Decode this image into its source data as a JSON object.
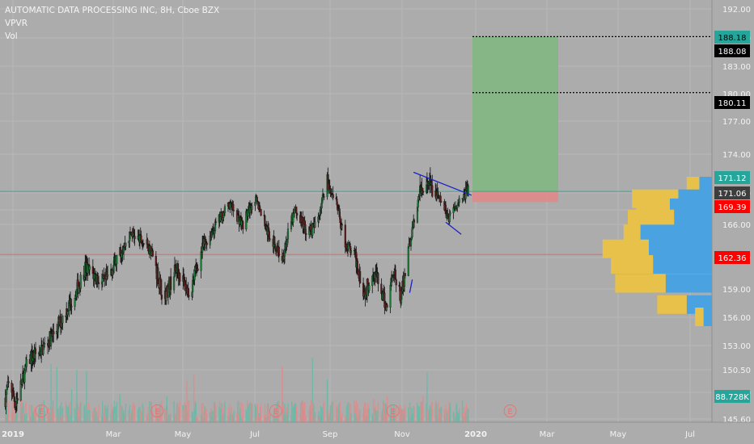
{
  "chart_data": {
    "type": "candlestick",
    "title": "AUTOMATIC DATA PROCESSING INC, 8H, Cboe BZX",
    "indicators": [
      "VPVR",
      "Vol"
    ],
    "price_axis": {
      "ticks": [
        "192.00",
        "188.00",
        "183.00",
        "180.00",
        "177.00",
        "174.00",
        "171.00",
        "168.00",
        "166.00",
        "162.00",
        "159.00",
        "156.00",
        "153.00",
        "150.50",
        "148.00",
        "145.60"
      ]
    },
    "time_axis": {
      "ticks": [
        {
          "label": "2019",
          "bold": true
        },
        {
          "label": "Mar",
          "bold": false
        },
        {
          "label": "May",
          "bold": false
        },
        {
          "label": "Jul",
          "bold": false
        },
        {
          "label": "Sep",
          "bold": false
        },
        {
          "label": "Nov",
          "bold": false
        },
        {
          "label": "2020",
          "bold": true
        },
        {
          "label": "Mar",
          "bold": false
        },
        {
          "label": "May",
          "bold": false
        },
        {
          "label": "Jul",
          "bold": false
        }
      ]
    },
    "price_labels": [
      {
        "value": "188.18",
        "kind": "target",
        "color": "#26a69a",
        "text_color": "#000000"
      },
      {
        "value": "188.08",
        "kind": "marker",
        "color": "#000000",
        "text_color": "#ffffff"
      },
      {
        "value": "180.11",
        "kind": "marker",
        "color": "#000000",
        "text_color": "#ffffff"
      },
      {
        "value": "171.12",
        "kind": "entry",
        "color": "#26a69a",
        "text_color": "#ffffff"
      },
      {
        "value": "171.06",
        "kind": "last",
        "color": "#3d3d3d",
        "text_color": "#ffffff"
      },
      {
        "value": "169.39",
        "kind": "stop",
        "color": "#ff0000",
        "text_color": "#ffffff"
      },
      {
        "value": "162.36",
        "kind": "horizontal-line",
        "color": "#ff0000",
        "text_color": "#ffffff"
      },
      {
        "value": "88.728K",
        "kind": "volume",
        "color": "#26a69a",
        "text_color": "#ffffff"
      }
    ],
    "horizontal_lines": [
      {
        "price": 162.36,
        "color": "#ff5252",
        "style": "solid"
      },
      {
        "price": 171.12,
        "color": "#26a69a",
        "style": "solid"
      },
      {
        "price": 188.18,
        "color": "#000000",
        "style": "dotted"
      },
      {
        "price": 180.11,
        "color": "#000000",
        "style": "dotted"
      }
    ],
    "long_position": {
      "entry": 171.12,
      "target": 188.18,
      "stop": 169.39,
      "profit_color": "#7fb67f",
      "loss_color": "#e08a8a"
    },
    "earnings_markers": {
      "label": "E",
      "dates": [
        "2019-01-30",
        "2019-04-30",
        "2019-07-31",
        "2019-10-30",
        "2020-01-29"
      ]
    },
    "candles": {
      "start": "2019-01-02",
      "end": "2019-12-27",
      "anchors": [
        [
          "2019-01-02",
          147.5
        ],
        [
          "2019-01-05",
          149.0
        ],
        [
          "2019-01-10",
          147.0
        ],
        [
          "2019-01-20",
          151.5
        ],
        [
          "2019-01-30",
          152.5
        ],
        [
          "2019-02-10",
          154.5
        ],
        [
          "2019-02-25",
          158.5
        ],
        [
          "2019-03-05",
          161.0
        ],
        [
          "2019-03-20",
          159.5
        ],
        [
          "2019-04-01",
          162.5
        ],
        [
          "2019-04-10",
          165.0
        ],
        [
          "2019-04-25",
          163.0
        ],
        [
          "2019-05-05",
          158.0
        ],
        [
          "2019-05-15",
          161.0
        ],
        [
          "2019-05-25",
          158.5
        ],
        [
          "2019-06-05",
          163.5
        ],
        [
          "2019-06-15",
          166.0
        ],
        [
          "2019-06-25",
          169.0
        ],
        [
          "2019-07-05",
          166.0
        ],
        [
          "2019-07-15",
          170.0
        ],
        [
          "2019-07-25",
          165.0
        ],
        [
          "2019-08-05",
          162.0
        ],
        [
          "2019-08-15",
          168.0
        ],
        [
          "2019-08-25",
          165.0
        ],
        [
          "2019-09-01",
          166.0
        ],
        [
          "2019-09-08",
          172.5
        ],
        [
          "2019-09-15",
          170.0
        ],
        [
          "2019-09-22",
          164.0
        ],
        [
          "2019-10-01",
          162.0
        ],
        [
          "2019-10-08",
          158.5
        ],
        [
          "2019-10-15",
          161.0
        ],
        [
          "2019-10-25",
          157.0
        ],
        [
          "2019-10-30",
          161.0
        ],
        [
          "2019-11-05",
          158.0
        ],
        [
          "2019-11-10",
          162.0
        ],
        [
          "2019-11-15",
          166.0
        ],
        [
          "2019-11-20",
          171.0
        ],
        [
          "2019-11-28",
          171.5
        ],
        [
          "2019-12-05",
          170.0
        ],
        [
          "2019-12-12",
          167.0
        ],
        [
          "2019-12-20",
          169.5
        ],
        [
          "2019-12-27",
          171.06
        ]
      ]
    },
    "trend_lines": [
      {
        "from": [
          "2019-11-15",
          172.6
        ],
        "to": [
          "2019-12-30",
          170.6
        ],
        "color": "#1e22c8"
      },
      {
        "from": [
          "2019-12-10",
          166.3
        ],
        "to": [
          "2019-12-22",
          164.8
        ],
        "color": "#1e22c8"
      },
      {
        "from": [
          "2019-11-12",
          158.6
        ],
        "to": [
          "2019-11-14",
          159.9
        ],
        "color": "#1e22c8"
      }
    ],
    "volume_profile": {
      "up_color": "#4aa3e0",
      "down_color": "#e8c14a",
      "rows": [
        {
          "price": 171.5,
          "up": 3,
          "down": 3
        },
        {
          "price": 169.9,
          "up": 8,
          "down": 11
        },
        {
          "price": 168.3,
          "up": 10,
          "down": 8
        },
        {
          "price": 166.7,
          "up": 9,
          "down": 11
        },
        {
          "price": 164.8,
          "up": 17,
          "down": 4
        },
        {
          "price": 163.0,
          "up": 15,
          "down": 11
        },
        {
          "price": 161.3,
          "up": 14,
          "down": 10
        },
        {
          "price": 159.5,
          "up": 11,
          "down": 12
        },
        {
          "price": 157.3,
          "up": 6,
          "down": 7
        },
        {
          "price": 156.0,
          "up": 2,
          "down": 2
        }
      ]
    }
  }
}
